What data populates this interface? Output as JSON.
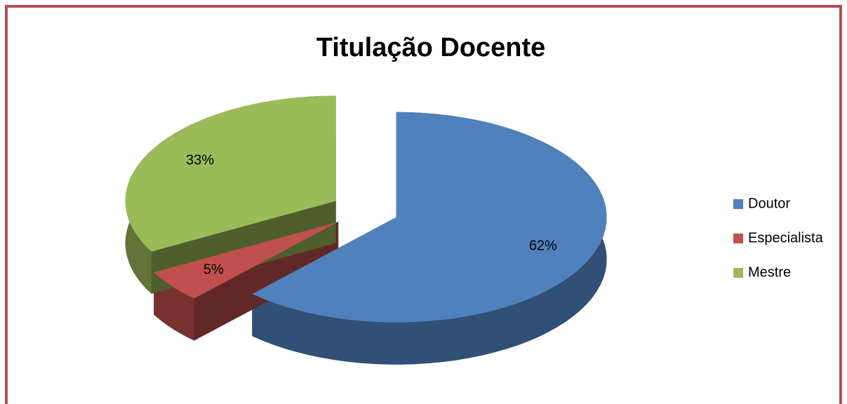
{
  "chart_data": {
    "type": "pie",
    "title": "Titulação Docente",
    "categories": [
      "Doutor",
      "Especialista",
      "Mestre"
    ],
    "values": [
      62,
      5,
      33
    ],
    "value_labels": [
      "62%",
      "5%",
      "33%"
    ],
    "colors": [
      "#4f81bd",
      "#c0504d",
      "#9bbb59"
    ],
    "legend": "right"
  }
}
